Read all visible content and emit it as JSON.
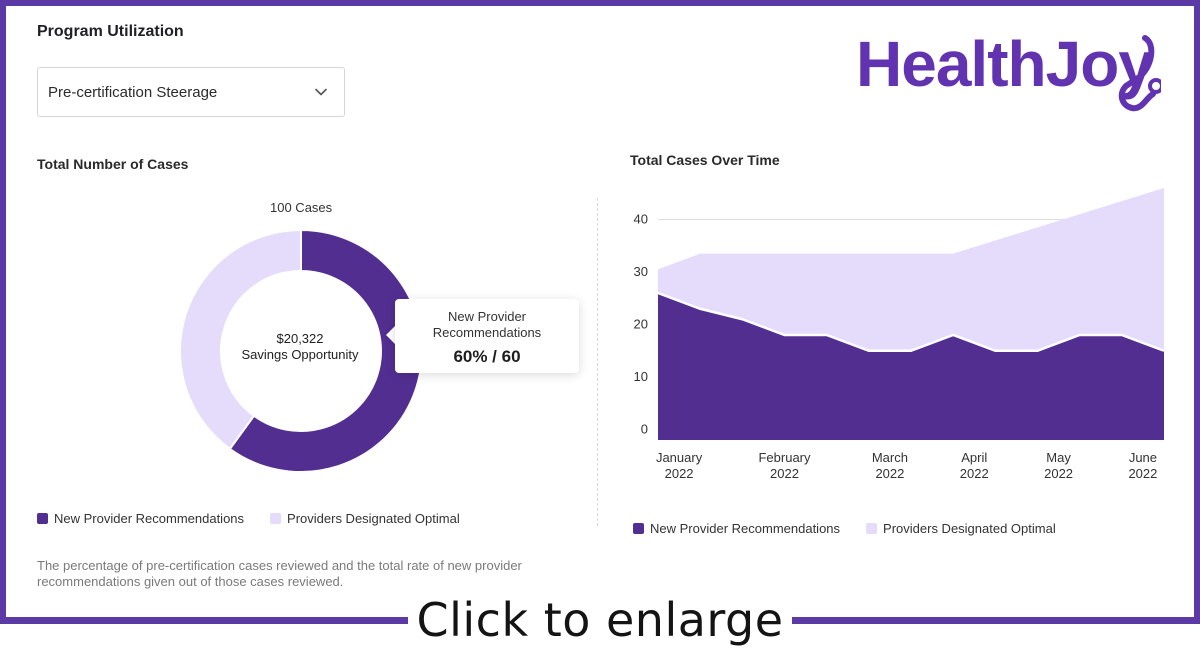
{
  "header": {
    "title": "Program Utilization",
    "select": {
      "value": "Pre-certification Steerage"
    },
    "logo_text": "HealthJoy"
  },
  "left_panel": {
    "title": "Total Number of Cases",
    "top_label": "100 Cases",
    "center_line1": "$20,322",
    "center_line2": "Savings Opportunity",
    "tooltip": {
      "line1": "New Provider",
      "line2": "Recommendations",
      "value": "60% / 60"
    },
    "legend": [
      "New Provider Recommendations",
      "Providers Designated Optimal"
    ],
    "footnote": "The percentage of pre-certification cases reviewed and the total rate of new provider recommendations given out of those cases reviewed."
  },
  "right_panel": {
    "title": "Total Cases Over Time",
    "legend": [
      "New Provider Recommendations",
      "Providers Designated Optimal"
    ]
  },
  "colors": {
    "dark": "#522e91",
    "light": "#e4dcfa",
    "frame": "#5b3aa5"
  },
  "chart_data": [
    {
      "type": "pie",
      "title": "Total Number of Cases",
      "categories": [
        "New Provider Recommendations",
        "Providers Designated Optimal"
      ],
      "values": [
        60,
        40
      ],
      "colors": [
        "#522e91",
        "#e4dcfa"
      ],
      "total_label": "100 Cases"
    },
    {
      "type": "area",
      "title": "Total Cases Over Time",
      "x": [
        0,
        1,
        2,
        3,
        4,
        5,
        6,
        7,
        8,
        9,
        10,
        11,
        12
      ],
      "tick_labels": [
        [
          "January",
          "2022"
        ],
        [
          "February",
          "2022"
        ],
        [
          "March",
          "2022"
        ],
        [
          "April",
          "2022"
        ],
        [
          "May",
          "2022"
        ],
        [
          "June",
          "2022"
        ]
      ],
      "tick_positions": [
        0.5,
        3,
        5.5,
        7.5,
        9.5,
        11.5
      ],
      "yticks": [
        0,
        10,
        20,
        30,
        40
      ],
      "ylim": [
        -2,
        46
      ],
      "series": [
        {
          "name": "New Provider Recommendations",
          "values": [
            26,
            23,
            21,
            18,
            18,
            15,
            15,
            18,
            15,
            15,
            18,
            18,
            15
          ]
        },
        {
          "name": "Providers Designated Optimal",
          "values": [
            30.5,
            33.5,
            33.5,
            33.5,
            33.5,
            33.5,
            33.5,
            33.5,
            36,
            38.5,
            41,
            43.5,
            46
          ]
        }
      ]
    }
  ],
  "footer": {
    "cta": "Click to enlarge"
  }
}
